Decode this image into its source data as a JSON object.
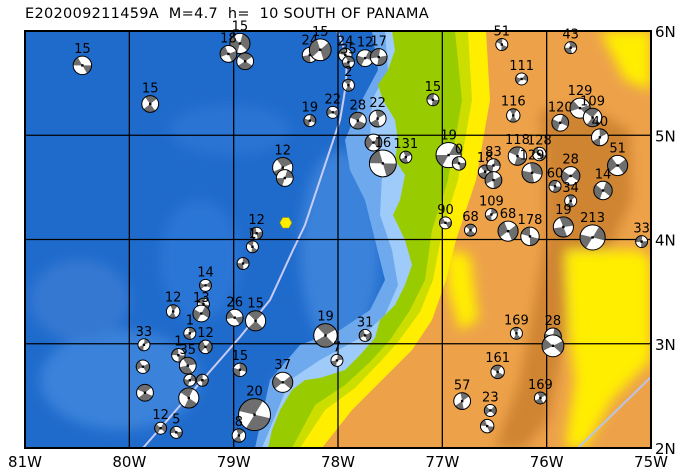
{
  "title": "E202009211459A  M=4.7  h=  10 SOUTH OF PANAMA",
  "map": {
    "lon_range": [
      -81,
      -75
    ],
    "lat_range": [
      2,
      6
    ],
    "lon_ticks": [
      "81W",
      "80W",
      "79W",
      "78W",
      "77W",
      "76W",
      "75W"
    ],
    "lat_ticks": [
      "2N",
      "3N",
      "4N",
      "5N",
      "6N"
    ],
    "grid": true,
    "colors": {
      "deep_ocean": "#1f6bcc",
      "ocean_mid": "#3b82da",
      "shelf": "#6ea9ee",
      "shelf_shallow": "#9fcbfa",
      "lowland": "#99cc00",
      "foothill": "#ffee00",
      "upland": "#eda24a",
      "ridge": "#cf8430",
      "trench_line": "#c8ccf4",
      "mechanism_shade": "#6e6e6e",
      "main_event": "#ffee00"
    },
    "main_event": {
      "lon": -78.5,
      "lat": 4.16
    },
    "events": [
      {
        "lon": -80.45,
        "lat": 5.67,
        "depth": "15",
        "mag": 5.4
      },
      {
        "lon": -79.8,
        "lat": 5.3,
        "depth": "15",
        "mag": 5.2
      },
      {
        "lon": -78.94,
        "lat": 5.88,
        "depth": "15",
        "mag": 5.6
      },
      {
        "lon": -79.05,
        "lat": 5.78,
        "depth": "18",
        "mag": 5.2
      },
      {
        "lon": -78.89,
        "lat": 5.71,
        "depth": "",
        "mag": 5.2
      },
      {
        "lon": -78.27,
        "lat": 5.77,
        "depth": "24",
        "mag": 5.0
      },
      {
        "lon": -78.17,
        "lat": 5.82,
        "depth": "15",
        "mag": 5.8
      },
      {
        "lon": -77.93,
        "lat": 5.77,
        "depth": "24",
        "mag": 4.8
      },
      {
        "lon": -77.9,
        "lat": 5.7,
        "depth": "35",
        "mag": 4.5
      },
      {
        "lon": -77.74,
        "lat": 5.74,
        "depth": "12",
        "mag": 5.2
      },
      {
        "lon": -77.61,
        "lat": 5.75,
        "depth": "17",
        "mag": 5.2
      },
      {
        "lon": -77.9,
        "lat": 5.48,
        "depth": "2",
        "mag": 4.6
      },
      {
        "lon": -78.27,
        "lat": 5.14,
        "depth": "19",
        "mag": 4.5
      },
      {
        "lon": -78.05,
        "lat": 5.22,
        "depth": "22",
        "mag": 4.6
      },
      {
        "lon": -77.81,
        "lat": 5.14,
        "depth": "28",
        "mag": 5.2
      },
      {
        "lon": -77.62,
        "lat": 5.16,
        "depth": "22",
        "mag": 5.2
      },
      {
        "lon": -77.66,
        "lat": 4.93,
        "depth": "",
        "mag": 5.2
      },
      {
        "lon": -77.57,
        "lat": 4.73,
        "depth": "16",
        "mag": 6.4
      },
      {
        "lon": -78.53,
        "lat": 4.69,
        "depth": "12",
        "mag": 5.6
      },
      {
        "lon": -78.51,
        "lat": 4.59,
        "depth": "",
        "mag": 5.2
      },
      {
        "lon": -78.78,
        "lat": 4.06,
        "depth": "12",
        "mag": 4.5
      },
      {
        "lon": -78.82,
        "lat": 3.93,
        "depth": "1",
        "mag": 4.2
      },
      {
        "lon": -78.91,
        "lat": 3.77,
        "depth": "",
        "mag": 4.5
      },
      {
        "lon": -79.27,
        "lat": 3.56,
        "depth": "14",
        "mag": 4.5
      },
      {
        "lon": -79.29,
        "lat": 3.38,
        "depth": "",
        "mag": 4.5
      },
      {
        "lon": -79.58,
        "lat": 3.31,
        "depth": "12",
        "mag": 4.8
      },
      {
        "lon": -79.31,
        "lat": 3.29,
        "depth": "13",
        "mag": 5.2
      },
      {
        "lon": -78.99,
        "lat": 3.25,
        "depth": "26",
        "mag": 5.2
      },
      {
        "lon": -78.79,
        "lat": 3.22,
        "depth": "15",
        "mag": 5.6
      },
      {
        "lon": -79.86,
        "lat": 2.99,
        "depth": "33",
        "mag": 4.5
      },
      {
        "lon": -79.87,
        "lat": 2.78,
        "depth": "",
        "mag": 4.8
      },
      {
        "lon": -79.85,
        "lat": 2.53,
        "depth": "",
        "mag": 5.2
      },
      {
        "lon": -79.42,
        "lat": 3.1,
        "depth": "1",
        "mag": 4.0
      },
      {
        "lon": -79.27,
        "lat": 2.97,
        "depth": "12",
        "mag": 4.8
      },
      {
        "lon": -79.53,
        "lat": 2.89,
        "depth": "1",
        "mag": 4.8
      },
      {
        "lon": -79.44,
        "lat": 2.79,
        "depth": "35",
        "mag": 5.2
      },
      {
        "lon": -79.42,
        "lat": 2.65,
        "depth": "",
        "mag": 4.5
      },
      {
        "lon": -79.3,
        "lat": 2.65,
        "depth": "",
        "mag": 4.5
      },
      {
        "lon": -79.43,
        "lat": 2.48,
        "depth": "",
        "mag": 5.6
      },
      {
        "lon": -78.94,
        "lat": 2.75,
        "depth": "15",
        "mag": 4.8
      },
      {
        "lon": -78.53,
        "lat": 2.63,
        "depth": "37",
        "mag": 5.6
      },
      {
        "lon": -78.8,
        "lat": 2.32,
        "depth": "20",
        "mag": 7.0
      },
      {
        "lon": -78.95,
        "lat": 2.12,
        "depth": "8",
        "mag": 4.8
      },
      {
        "lon": -79.7,
        "lat": 2.19,
        "depth": "12",
        "mag": 4.2
      },
      {
        "lon": -79.55,
        "lat": 2.15,
        "depth": "5",
        "mag": 4.5
      },
      {
        "lon": -78.12,
        "lat": 3.08,
        "depth": "19",
        "mag": 6.0
      },
      {
        "lon": -78.01,
        "lat": 2.84,
        "depth": "7",
        "mag": 4.5
      },
      {
        "lon": -77.74,
        "lat": 3.08,
        "depth": "31",
        "mag": 4.5
      },
      {
        "lon": -76.43,
        "lat": 5.87,
        "depth": "51",
        "mag": 4.0
      },
      {
        "lon": -75.77,
        "lat": 5.84,
        "depth": "43",
        "mag": 4.0
      },
      {
        "lon": -76.24,
        "lat": 5.54,
        "depth": "111",
        "mag": 4.5
      },
      {
        "lon": -77.09,
        "lat": 5.34,
        "depth": "15",
        "mag": 4.5
      },
      {
        "lon": -76.32,
        "lat": 5.19,
        "depth": "116",
        "mag": 4.8
      },
      {
        "lon": -75.87,
        "lat": 5.12,
        "depth": "120",
        "mag": 5.2
      },
      {
        "lon": -75.68,
        "lat": 5.26,
        "depth": "129",
        "mag": 5.6
      },
      {
        "lon": -75.56,
        "lat": 5.17,
        "depth": "109",
        "mag": 5.4
      },
      {
        "lon": -75.49,
        "lat": 4.98,
        "depth": "40",
        "mag": 5.2
      },
      {
        "lon": -75.32,
        "lat": 4.71,
        "depth": "51",
        "mag": 5.6
      },
      {
        "lon": -76.07,
        "lat": 4.82,
        "depth": "128",
        "mag": 4.8
      },
      {
        "lon": -77.35,
        "lat": 4.79,
        "depth": "131",
        "mag": 4.0
      },
      {
        "lon": -76.94,
        "lat": 4.81,
        "depth": "19",
        "mag": 6.2
      },
      {
        "lon": -76.84,
        "lat": 4.73,
        "depth": "0",
        "mag": 4.8
      },
      {
        "lon": -76.59,
        "lat": 4.65,
        "depth": "18",
        "mag": 4.8
      },
      {
        "lon": -76.51,
        "lat": 4.71,
        "depth": "83",
        "mag": 4.8
      },
      {
        "lon": -76.51,
        "lat": 4.57,
        "depth": "",
        "mag": 5.2
      },
      {
        "lon": -76.28,
        "lat": 4.8,
        "depth": "118",
        "mag": 5.4
      },
      {
        "lon": -76.14,
        "lat": 4.64,
        "depth": "129",
        "mag": 5.6
      },
      {
        "lon": -75.77,
        "lat": 4.61,
        "depth": "28",
        "mag": 5.4
      },
      {
        "lon": -75.92,
        "lat": 4.51,
        "depth": "60",
        "mag": 4.5
      },
      {
        "lon": -75.77,
        "lat": 4.37,
        "depth": "34",
        "mag": 4.5
      },
      {
        "lon": -75.46,
        "lat": 4.47,
        "depth": "14",
        "mag": 5.4
      },
      {
        "lon": -76.97,
        "lat": 4.16,
        "depth": "90",
        "mag": 4.5
      },
      {
        "lon": -76.73,
        "lat": 4.09,
        "depth": "68",
        "mag": 4.2
      },
      {
        "lon": -76.53,
        "lat": 4.24,
        "depth": "109",
        "mag": 4.5
      },
      {
        "lon": -76.37,
        "lat": 4.08,
        "depth": "68",
        "mag": 5.6
      },
      {
        "lon": -76.16,
        "lat": 4.03,
        "depth": "178",
        "mag": 5.4
      },
      {
        "lon": -75.84,
        "lat": 4.12,
        "depth": "19",
        "mag": 5.6
      },
      {
        "lon": -75.56,
        "lat": 4.02,
        "depth": "213",
        "mag": 6.2
      },
      {
        "lon": -75.09,
        "lat": 3.98,
        "depth": "33",
        "mag": 4.5
      },
      {
        "lon": -76.29,
        "lat": 3.1,
        "depth": "169",
        "mag": 4.5
      },
      {
        "lon": -75.94,
        "lat": 3.07,
        "depth": "28",
        "mag": 5.2
      },
      {
        "lon": -75.94,
        "lat": 2.98,
        "depth": "",
        "mag": 5.8
      },
      {
        "lon": -76.47,
        "lat": 2.73,
        "depth": "161",
        "mag": 4.8
      },
      {
        "lon": -76.81,
        "lat": 2.45,
        "depth": "57",
        "mag": 5.2
      },
      {
        "lon": -76.54,
        "lat": 2.36,
        "depth": "23",
        "mag": 4.5
      },
      {
        "lon": -76.57,
        "lat": 2.21,
        "depth": "",
        "mag": 4.8
      },
      {
        "lon": -76.06,
        "lat": 2.48,
        "depth": "169",
        "mag": 4.5
      }
    ]
  }
}
